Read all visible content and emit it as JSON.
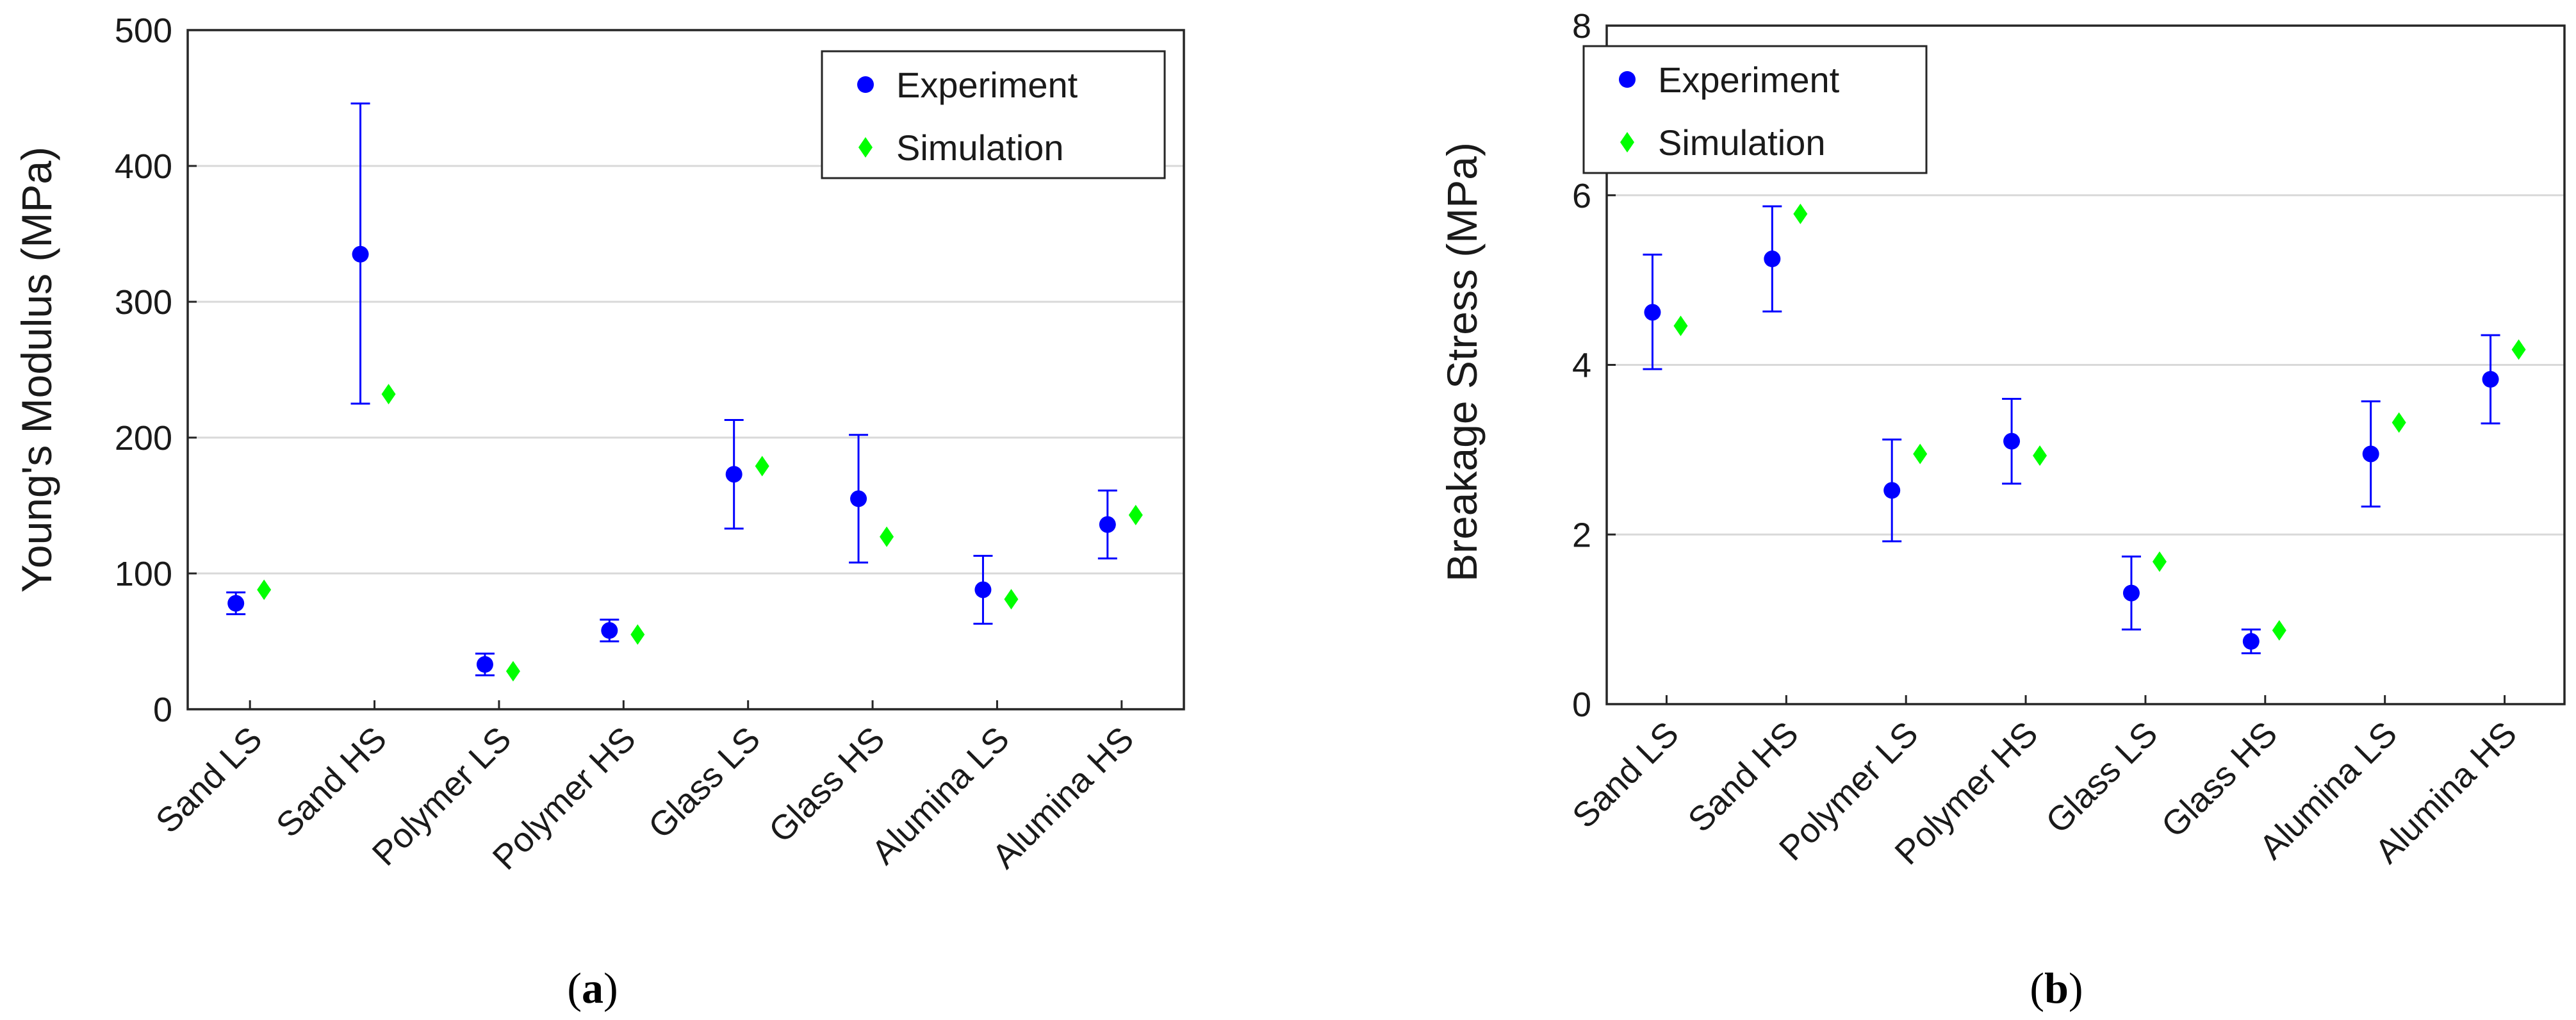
{
  "chart_data": [
    {
      "type": "scatter",
      "panel_label": "a",
      "title": "",
      "xlabel": "",
      "ylabel": "Young's Modulus (MPa)",
      "ylim": [
        0,
        500
      ],
      "yticks": [
        0,
        100,
        200,
        300,
        400,
        500
      ],
      "grid": true,
      "legend_position": "top-right",
      "categories": [
        "Sand LS",
        "Sand HS",
        "Polymer LS",
        "Polymer HS",
        "Glass LS",
        "Glass HS",
        "Alumina LS",
        "Alumina HS"
      ],
      "series": [
        {
          "name": "Experiment",
          "marker": "circle",
          "color": "#0000ff",
          "values": [
            78,
            335,
            33,
            58,
            173,
            155,
            88,
            136
          ],
          "err_low": [
            70,
            225,
            25,
            50,
            133,
            108,
            63,
            111
          ],
          "err_high": [
            86,
            446,
            41,
            66,
            213,
            202,
            113,
            161
          ]
        },
        {
          "name": "Simulation",
          "marker": "diamond",
          "color": "#00ff00",
          "values": [
            88,
            232,
            28,
            55,
            179,
            127,
            81,
            143
          ]
        }
      ]
    },
    {
      "type": "scatter",
      "panel_label": "b",
      "title": "",
      "xlabel": "",
      "ylabel": "Breakage Stress (MPa)",
      "ylim": [
        0,
        8
      ],
      "yticks": [
        0,
        2,
        4,
        6,
        8
      ],
      "grid": true,
      "legend_position": "top-left",
      "categories": [
        "Sand LS",
        "Sand HS",
        "Polymer LS",
        "Polymer HS",
        "Glass LS",
        "Glass HS",
        "Alumina LS",
        "Alumina HS"
      ],
      "series": [
        {
          "name": "Experiment",
          "marker": "circle",
          "color": "#0000ff",
          "values": [
            4.62,
            5.25,
            2.52,
            3.1,
            1.31,
            0.74,
            2.95,
            3.83
          ],
          "err_low": [
            3.95,
            4.63,
            1.92,
            2.6,
            0.88,
            0.6,
            2.33,
            3.31
          ],
          "err_high": [
            5.3,
            5.87,
            3.12,
            3.6,
            1.74,
            0.88,
            3.57,
            4.35
          ]
        },
        {
          "name": "Simulation",
          "marker": "diamond",
          "color": "#00ff00",
          "values": [
            4.46,
            5.78,
            2.95,
            2.93,
            1.68,
            0.87,
            3.32,
            4.18
          ]
        }
      ]
    }
  ]
}
